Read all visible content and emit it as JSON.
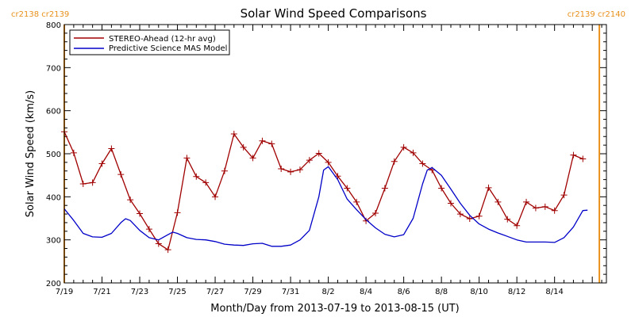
{
  "chart_data": {
    "type": "line",
    "title": "Solar Wind Speed Comparisons",
    "xlabel": "Month/Day from 2013-07-19 to 2013-08-15 (UT)",
    "ylabel": "Solar Wind Speed (km/s)",
    "xlim": [
      "2013-07-19",
      "2013-08-16T18:00"
    ],
    "ylim": [
      200,
      800
    ],
    "yticks": [
      200,
      300,
      400,
      500,
      600,
      700,
      800
    ],
    "xticks": [
      {
        "date": "2013-07-19",
        "label": "7/19"
      },
      {
        "date": "2013-07-21",
        "label": "7/21"
      },
      {
        "date": "2013-07-23",
        "label": "7/23"
      },
      {
        "date": "2013-07-25",
        "label": "7/25"
      },
      {
        "date": "2013-07-27",
        "label": "7/27"
      },
      {
        "date": "2013-07-29",
        "label": "7/29"
      },
      {
        "date": "2013-07-31",
        "label": "7/31"
      },
      {
        "date": "2013-08-02",
        "label": "8/2"
      },
      {
        "date": "2013-08-04",
        "label": "8/4"
      },
      {
        "date": "2013-08-06",
        "label": "8/6"
      },
      {
        "date": "2013-08-08",
        "label": "8/8"
      },
      {
        "date": "2013-08-10",
        "label": "8/10"
      },
      {
        "date": "2013-08-12",
        "label": "8/12"
      },
      {
        "date": "2013-08-14",
        "label": "8/14"
      }
    ],
    "carrington": {
      "left_label": "cr2138 cr2139",
      "right_label": "cr2139 cr2140",
      "left_boundary": "2013-07-19",
      "right_boundary": "2013-08-16T09:00",
      "color": "#e8901a"
    },
    "legend_position": "top-left",
    "series": [
      {
        "name": "STEREO-Ahead (12-hr avg)",
        "color": "#a00000",
        "marker": "plus",
        "points": [
          [
            "2013-07-19T00:00",
            551
          ],
          [
            "2013-07-19T12:00",
            502
          ],
          [
            "2013-07-20T00:00",
            430
          ],
          [
            "2013-07-20T12:00",
            433
          ],
          [
            "2013-07-21T00:00",
            477
          ],
          [
            "2013-07-21T12:00",
            512
          ],
          [
            "2013-07-22T00:00",
            452
          ],
          [
            "2013-07-22T12:00",
            393
          ],
          [
            "2013-07-23T00:00",
            361
          ],
          [
            "2013-07-23T12:00",
            325
          ],
          [
            "2013-07-24T00:00",
            291
          ],
          [
            "2013-07-24T12:00",
            277
          ],
          [
            "2013-07-25T00:00",
            363
          ],
          [
            "2013-07-25T12:00",
            490
          ],
          [
            "2013-07-26T00:00",
            447
          ],
          [
            "2013-07-26T12:00",
            433
          ],
          [
            "2013-07-27T00:00",
            400
          ],
          [
            "2013-07-27T12:00",
            460
          ],
          [
            "2013-07-28T00:00",
            546
          ],
          [
            "2013-07-28T12:00",
            515
          ],
          [
            "2013-07-29T00:00",
            490
          ],
          [
            "2013-07-29T12:00",
            530
          ],
          [
            "2013-07-30T00:00",
            523
          ],
          [
            "2013-07-30T12:00",
            465
          ],
          [
            "2013-07-31T00:00",
            458
          ],
          [
            "2013-07-31T12:00",
            463
          ],
          [
            "2013-08-01T00:00",
            485
          ],
          [
            "2013-08-01T12:00",
            501
          ],
          [
            "2013-08-02T00:00",
            480
          ],
          [
            "2013-08-02T12:00",
            448
          ],
          [
            "2013-08-03T00:00",
            420
          ],
          [
            "2013-08-03T12:00",
            388
          ],
          [
            "2013-08-04T00:00",
            344
          ],
          [
            "2013-08-04T12:00",
            362
          ],
          [
            "2013-08-05T00:00",
            420
          ],
          [
            "2013-08-05T12:00",
            482
          ],
          [
            "2013-08-06T00:00",
            515
          ],
          [
            "2013-08-06T12:00",
            502
          ],
          [
            "2013-08-07T00:00",
            477
          ],
          [
            "2013-08-07T12:00",
            462
          ],
          [
            "2013-08-08T00:00",
            420
          ],
          [
            "2013-08-08T12:00",
            385
          ],
          [
            "2013-08-09T00:00",
            360
          ],
          [
            "2013-08-09T12:00",
            349
          ],
          [
            "2013-08-10T00:00",
            355
          ],
          [
            "2013-08-10T12:00",
            421
          ],
          [
            "2013-08-11T00:00",
            388
          ],
          [
            "2013-08-11T12:00",
            348
          ],
          [
            "2013-08-12T00:00",
            333
          ],
          [
            "2013-08-12T12:00",
            388
          ],
          [
            "2013-08-13T00:00",
            374
          ],
          [
            "2013-08-13T12:00",
            377
          ],
          [
            "2013-08-14T00:00",
            368
          ],
          [
            "2013-08-14T12:00",
            404
          ],
          [
            "2013-08-15T00:00",
            497
          ],
          [
            "2013-08-15T12:00",
            488
          ]
        ]
      },
      {
        "name": "Predictive Science MAS Model",
        "color": "#0000c8",
        "marker": "none",
        "points": [
          [
            "2013-07-19T00:00",
            372
          ],
          [
            "2013-07-19T12:00",
            345
          ],
          [
            "2013-07-20T00:00",
            315
          ],
          [
            "2013-07-20T12:00",
            307
          ],
          [
            "2013-07-21T00:00",
            306
          ],
          [
            "2013-07-21T12:00",
            315
          ],
          [
            "2013-07-22T00:00",
            340
          ],
          [
            "2013-07-22T06:00",
            349
          ],
          [
            "2013-07-22T12:00",
            345
          ],
          [
            "2013-07-23T00:00",
            322
          ],
          [
            "2013-07-23T12:00",
            305
          ],
          [
            "2013-07-24T00:00",
            300
          ],
          [
            "2013-07-24T12:00",
            312
          ],
          [
            "2013-07-24T18:00",
            318
          ],
          [
            "2013-07-25T00:00",
            315
          ],
          [
            "2013-07-25T12:00",
            305
          ],
          [
            "2013-07-26T00:00",
            301
          ],
          [
            "2013-07-26T12:00",
            300
          ],
          [
            "2013-07-27T00:00",
            296
          ],
          [
            "2013-07-27T12:00",
            290
          ],
          [
            "2013-07-28T00:00",
            288
          ],
          [
            "2013-07-28T12:00",
            287
          ],
          [
            "2013-07-29T00:00",
            291
          ],
          [
            "2013-07-29T12:00",
            292
          ],
          [
            "2013-07-30T00:00",
            285
          ],
          [
            "2013-07-30T12:00",
            285
          ],
          [
            "2013-07-31T00:00",
            288
          ],
          [
            "2013-07-31T12:00",
            300
          ],
          [
            "2013-08-01T00:00",
            322
          ],
          [
            "2013-08-01T12:00",
            400
          ],
          [
            "2013-08-01T18:00",
            462
          ],
          [
            "2013-08-02T00:00",
            470
          ],
          [
            "2013-08-02T12:00",
            440
          ],
          [
            "2013-08-03T00:00",
            395
          ],
          [
            "2013-08-03T12:00",
            370
          ],
          [
            "2013-08-04T00:00",
            347
          ],
          [
            "2013-08-04T12:00",
            328
          ],
          [
            "2013-08-05T00:00",
            313
          ],
          [
            "2013-08-05T12:00",
            307
          ],
          [
            "2013-08-06T00:00",
            312
          ],
          [
            "2013-08-06T12:00",
            350
          ],
          [
            "2013-08-07T00:00",
            430
          ],
          [
            "2013-08-07T06:00",
            462
          ],
          [
            "2013-08-07T12:00",
            468
          ],
          [
            "2013-08-08T00:00",
            450
          ],
          [
            "2013-08-08T12:00",
            418
          ],
          [
            "2013-08-09T00:00",
            385
          ],
          [
            "2013-08-09T12:00",
            357
          ],
          [
            "2013-08-10T00:00",
            337
          ],
          [
            "2013-08-10T12:00",
            325
          ],
          [
            "2013-08-11T00:00",
            316
          ],
          [
            "2013-08-11T12:00",
            308
          ],
          [
            "2013-08-12T00:00",
            300
          ],
          [
            "2013-08-12T12:00",
            295
          ],
          [
            "2013-08-13T00:00",
            295
          ],
          [
            "2013-08-13T12:00",
            295
          ],
          [
            "2013-08-14T00:00",
            294
          ],
          [
            "2013-08-14T12:00",
            305
          ],
          [
            "2013-08-15T00:00",
            330
          ],
          [
            "2013-08-15T12:00",
            368
          ],
          [
            "2013-08-15T18:00",
            369
          ]
        ]
      }
    ]
  }
}
